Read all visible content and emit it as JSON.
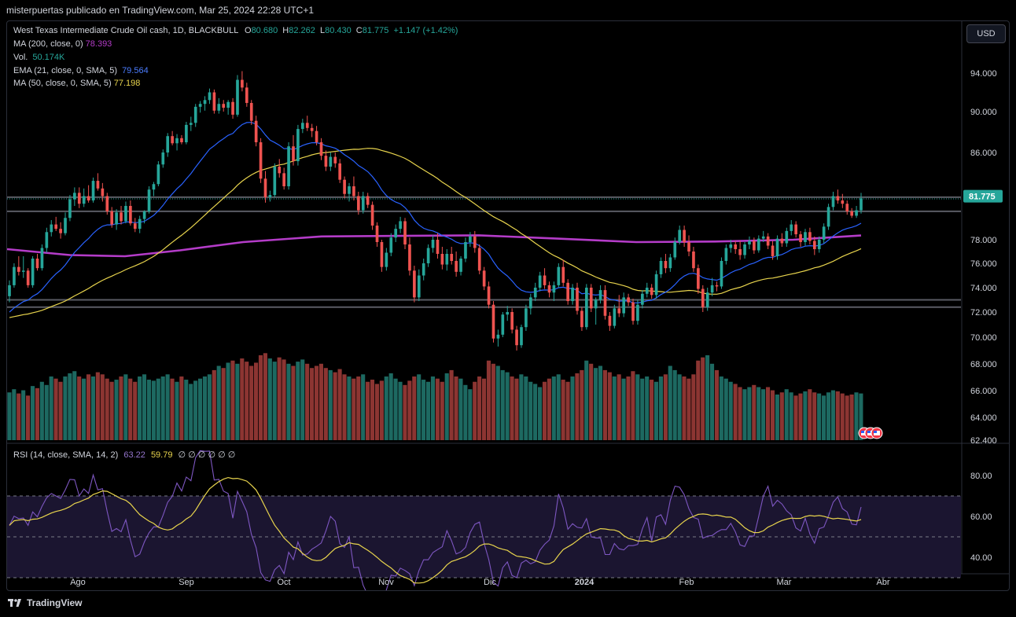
{
  "header": {
    "publisher": "misterpuertas publicado en TradingView.com, Mar 25, 2024 22:28 UTC+1"
  },
  "currency_button": "USD",
  "legend": {
    "symbol": "West Texas Intermediate Crude Oil cash, 1D, BLACKBULL",
    "o_label": "O",
    "o_value": "80.680",
    "h_label": "H",
    "h_value": "82.262",
    "l_label": "L",
    "l_value": "80.430",
    "c_label": "C",
    "c_value": "81.775",
    "change": "+1.147 (+1.42%)",
    "ma200_label": "MA (200, close, 0)",
    "ma200_value": "78.393",
    "vol_label": "Vol.",
    "vol_value": "50.174K",
    "ema21_label": "EMA (21, close, 0, SMA, 5)",
    "ema21_value": "79.564",
    "ma50_label": "MA (50, close, 0, SMA, 5)",
    "ma50_value": "77.198",
    "rsi_label": "RSI (14, close, SMA, 14, 2)",
    "rsi_value": "63.22",
    "rsi_ma_value": "59.79",
    "rsi_extra": "∅ ∅ ∅ ∅ ∅ ∅"
  },
  "footer": {
    "brand": "TradingView",
    "logo_icon": "tradingview-logo-icon"
  },
  "colors": {
    "up": "#26a69a",
    "down": "#ef5350",
    "ema": "#2962ff",
    "ma50": "#e8d44d",
    "ma200": "#b43cc8",
    "rsi": "#7e57c2",
    "rsi_ma": "#e8d44d",
    "last_price_bg": "#26a69a"
  },
  "chart_data": {
    "type": "candlestick",
    "price_axis_ticks": [
      "94.000",
      "90.000",
      "86.000",
      "78.000",
      "76.000",
      "74.000",
      "72.000",
      "70.000",
      "68.000",
      "66.000",
      "64.000",
      "62.400"
    ],
    "time_axis_ticks": [
      "Ago",
      "Sep",
      "Oct",
      "Nov",
      "Dic",
      "2024",
      "Feb",
      "Mar",
      "Abr"
    ],
    "last_price": "81.775",
    "horizontal_levels": [
      81.9,
      80.6,
      73.0,
      72.4
    ],
    "candles": [
      [
        73.3,
        74.6,
        72.8,
        74.2
      ],
      [
        74.2,
        76.0,
        74.0,
        75.7
      ],
      [
        75.7,
        76.6,
        75.0,
        75.3
      ],
      [
        75.3,
        76.6,
        74.8,
        75.4
      ],
      [
        75.4,
        75.6,
        74.0,
        74.2
      ],
      [
        74.2,
        76.6,
        74.0,
        76.4
      ],
      [
        76.4,
        76.8,
        75.4,
        75.6
      ],
      [
        75.6,
        77.6,
        75.4,
        77.3
      ],
      [
        77.3,
        79.1,
        76.9,
        78.7
      ],
      [
        78.7,
        79.8,
        78.3,
        79.4
      ],
      [
        79.4,
        80.1,
        78.8,
        79.0
      ],
      [
        79.0,
        79.6,
        78.1,
        78.6
      ],
      [
        78.6,
        80.5,
        78.4,
        80.0
      ],
      [
        80.0,
        82.1,
        79.7,
        81.7
      ],
      [
        81.7,
        82.8,
        81.1,
        82.3
      ],
      [
        82.3,
        82.8,
        80.9,
        81.3
      ],
      [
        81.3,
        82.7,
        81.0,
        82.0
      ],
      [
        82.0,
        83.0,
        81.4,
        81.6
      ],
      [
        81.6,
        83.7,
        81.4,
        83.4
      ],
      [
        83.4,
        84.1,
        82.5,
        82.7
      ],
      [
        82.7,
        83.2,
        81.5,
        82.0
      ],
      [
        82.0,
        82.3,
        80.3,
        80.6
      ],
      [
        80.6,
        81.0,
        79.1,
        79.4
      ],
      [
        79.4,
        80.8,
        78.9,
        80.5
      ],
      [
        80.5,
        81.1,
        79.4,
        79.7
      ],
      [
        79.7,
        81.5,
        79.5,
        81.1
      ],
      [
        81.1,
        81.6,
        79.3,
        79.5
      ],
      [
        79.5,
        80.0,
        78.7,
        79.0
      ],
      [
        79.0,
        80.2,
        78.6,
        79.9
      ],
      [
        79.9,
        80.7,
        79.5,
        80.6
      ],
      [
        80.6,
        82.9,
        80.4,
        82.6
      ],
      [
        82.6,
        83.3,
        82.0,
        83.1
      ],
      [
        83.1,
        85.2,
        82.9,
        84.9
      ],
      [
        84.9,
        86.3,
        84.6,
        86.0
      ],
      [
        86.0,
        87.9,
        85.6,
        87.6
      ],
      [
        87.6,
        88.1,
        86.7,
        86.9
      ],
      [
        86.9,
        87.8,
        86.2,
        87.4
      ],
      [
        87.4,
        87.7,
        86.8,
        87.0
      ],
      [
        87.0,
        89.0,
        86.8,
        88.7
      ],
      [
        88.7,
        89.5,
        88.1,
        88.9
      ],
      [
        88.9,
        90.8,
        88.5,
        90.5
      ],
      [
        90.5,
        91.1,
        89.9,
        90.8
      ],
      [
        90.8,
        91.6,
        90.1,
        91.2
      ],
      [
        91.2,
        92.4,
        90.8,
        92.0
      ],
      [
        92.0,
        92.3,
        89.8,
        90.1
      ],
      [
        90.1,
        91.4,
        89.8,
        90.8
      ],
      [
        90.8,
        91.2,
        90.0,
        90.4
      ],
      [
        90.4,
        91.2,
        89.7,
        91.0
      ],
      [
        91.0,
        91.4,
        89.3,
        89.7
      ],
      [
        89.7,
        93.8,
        89.5,
        93.3
      ],
      [
        93.3,
        94.2,
        92.1,
        92.5
      ],
      [
        92.5,
        93.0,
        90.5,
        90.9
      ],
      [
        90.9,
        91.2,
        88.7,
        89.1
      ],
      [
        89.1,
        89.6,
        86.6,
        87.0
      ],
      [
        87.0,
        87.4,
        83.2,
        83.6
      ],
      [
        83.6,
        84.3,
        81.4,
        81.9
      ],
      [
        81.9,
        82.5,
        81.5,
        82.1
      ],
      [
        82.1,
        85.0,
        81.9,
        84.7
      ],
      [
        84.7,
        85.4,
        83.7,
        84.1
      ],
      [
        84.1,
        84.6,
        82.6,
        82.9
      ],
      [
        82.9,
        87.0,
        82.6,
        86.6
      ],
      [
        86.6,
        87.7,
        84.8,
        85.2
      ],
      [
        85.2,
        88.7,
        84.8,
        88.3
      ],
      [
        88.3,
        89.3,
        87.9,
        88.9
      ],
      [
        88.9,
        89.6,
        88.1,
        88.4
      ],
      [
        88.4,
        88.8,
        87.5,
        88.1
      ],
      [
        88.1,
        88.6,
        86.7,
        87.0
      ],
      [
        87.0,
        87.4,
        85.3,
        85.7
      ],
      [
        85.7,
        86.2,
        84.3,
        84.7
      ],
      [
        84.7,
        86.0,
        84.3,
        85.6
      ],
      [
        85.6,
        86.0,
        84.6,
        85.0
      ],
      [
        85.0,
        85.4,
        83.2,
        83.5
      ],
      [
        83.5,
        83.8,
        81.8,
        82.2
      ],
      [
        82.2,
        83.2,
        81.5,
        82.9
      ],
      [
        82.9,
        83.8,
        81.6,
        82.0
      ],
      [
        82.0,
        82.4,
        80.3,
        80.7
      ],
      [
        80.7,
        82.4,
        80.4,
        82.0
      ],
      [
        82.0,
        82.3,
        80.9,
        81.2
      ],
      [
        81.2,
        81.5,
        78.9,
        79.3
      ],
      [
        79.3,
        79.6,
        77.4,
        77.8
      ],
      [
        77.8,
        78.0,
        75.3,
        75.7
      ],
      [
        75.7,
        77.3,
        75.4,
        76.9
      ],
      [
        76.9,
        78.6,
        76.6,
        78.2
      ],
      [
        78.2,
        79.4,
        77.8,
        79.0
      ],
      [
        79.0,
        80.1,
        78.6,
        79.7
      ],
      [
        79.7,
        80.0,
        77.2,
        77.6
      ],
      [
        77.6,
        78.2,
        75.0,
        75.4
      ],
      [
        75.4,
        75.8,
        72.8,
        73.2
      ],
      [
        73.2,
        75.5,
        72.9,
        75.0
      ],
      [
        75.0,
        76.4,
        74.6,
        76.0
      ],
      [
        76.0,
        77.6,
        75.7,
        77.3
      ],
      [
        77.3,
        78.4,
        76.9,
        78.0
      ],
      [
        78.0,
        78.6,
        76.4,
        76.8
      ],
      [
        76.8,
        77.4,
        75.5,
        75.9
      ],
      [
        75.9,
        77.2,
        75.4,
        76.8
      ],
      [
        76.8,
        77.4,
        75.9,
        76.2
      ],
      [
        76.2,
        77.0,
        74.9,
        75.3
      ],
      [
        75.3,
        76.6,
        75.0,
        76.4
      ],
      [
        76.4,
        78.2,
        76.1,
        77.8
      ],
      [
        77.8,
        78.7,
        77.4,
        78.3
      ],
      [
        78.3,
        78.8,
        76.9,
        77.3
      ],
      [
        77.3,
        77.6,
        75.1,
        75.4
      ],
      [
        75.4,
        75.7,
        73.8,
        74.1
      ],
      [
        74.1,
        74.5,
        72.3,
        72.6
      ],
      [
        72.6,
        72.9,
        69.6,
        69.9
      ],
      [
        69.9,
        70.6,
        69.3,
        70.2
      ],
      [
        70.2,
        72.0,
        70.0,
        71.8
      ],
      [
        71.8,
        72.5,
        71.3,
        72.0
      ],
      [
        72.0,
        72.3,
        70.3,
        70.6
      ],
      [
        70.6,
        70.9,
        69.0,
        69.4
      ],
      [
        69.4,
        71.0,
        69.2,
        70.8
      ],
      [
        70.8,
        72.6,
        70.5,
        72.3
      ],
      [
        72.3,
        73.5,
        71.8,
        73.2
      ],
      [
        73.2,
        74.4,
        72.9,
        74.0
      ],
      [
        74.0,
        75.3,
        73.7,
        75.0
      ],
      [
        75.0,
        75.6,
        73.9,
        74.2
      ],
      [
        74.2,
        74.5,
        73.2,
        73.6
      ],
      [
        73.6,
        74.5,
        72.9,
        74.2
      ],
      [
        74.2,
        76.0,
        74.0,
        75.7
      ],
      [
        75.7,
        76.3,
        74.1,
        74.4
      ],
      [
        74.4,
        74.7,
        72.6,
        72.9
      ],
      [
        72.9,
        74.3,
        72.6,
        74.0
      ],
      [
        74.0,
        74.4,
        71.8,
        72.1
      ],
      [
        72.1,
        72.4,
        70.5,
        70.8
      ],
      [
        70.8,
        74.3,
        70.6,
        74.0
      ],
      [
        74.0,
        74.3,
        72.0,
        72.3
      ],
      [
        72.3,
        73.2,
        71.0,
        73.0
      ],
      [
        73.0,
        74.2,
        72.7,
        73.8
      ],
      [
        73.8,
        74.2,
        71.4,
        71.7
      ],
      [
        71.7,
        72.0,
        70.5,
        70.9
      ],
      [
        70.9,
        72.6,
        70.7,
        72.3
      ],
      [
        72.3,
        73.4,
        71.6,
        71.9
      ],
      [
        71.9,
        73.6,
        71.6,
        73.2
      ],
      [
        73.2,
        73.5,
        72.5,
        72.8
      ],
      [
        72.8,
        73.1,
        71.0,
        71.3
      ],
      [
        71.3,
        73.0,
        71.0,
        72.6
      ],
      [
        72.6,
        73.8,
        72.3,
        73.5
      ],
      [
        73.5,
        74.4,
        73.2,
        74.0
      ],
      [
        74.0,
        74.3,
        73.1,
        73.4
      ],
      [
        73.4,
        75.4,
        73.1,
        75.1
      ],
      [
        75.1,
        76.5,
        74.8,
        76.2
      ],
      [
        76.2,
        76.8,
        75.2,
        75.6
      ],
      [
        75.6,
        76.8,
        75.3,
        76.5
      ],
      [
        76.5,
        78.2,
        76.3,
        77.8
      ],
      [
        77.8,
        79.3,
        77.6,
        78.9
      ],
      [
        78.9,
        79.3,
        77.4,
        77.8
      ],
      [
        77.8,
        78.4,
        76.6,
        77.0
      ],
      [
        77.0,
        77.4,
        75.3,
        75.6
      ],
      [
        75.6,
        75.9,
        73.5,
        73.9
      ],
      [
        73.9,
        74.2,
        72.0,
        72.4
      ],
      [
        72.4,
        74.0,
        72.1,
        73.6
      ],
      [
        73.6,
        74.8,
        73.3,
        74.2
      ],
      [
        74.2,
        74.5,
        73.7,
        74.1
      ],
      [
        74.1,
        76.5,
        73.9,
        76.2
      ],
      [
        76.2,
        77.6,
        75.9,
        77.3
      ],
      [
        77.3,
        78.0,
        76.9,
        77.6
      ],
      [
        77.6,
        77.9,
        76.8,
        77.2
      ],
      [
        77.2,
        77.9,
        76.3,
        76.7
      ],
      [
        76.7,
        77.8,
        76.4,
        77.6
      ],
      [
        77.6,
        78.3,
        77.2,
        77.9
      ],
      [
        77.9,
        78.2,
        76.8,
        77.1
      ],
      [
        77.1,
        78.4,
        76.9,
        78.1
      ],
      [
        78.1,
        78.8,
        77.8,
        78.3
      ],
      [
        78.3,
        78.6,
        77.2,
        77.5
      ],
      [
        77.5,
        77.9,
        76.3,
        76.6
      ],
      [
        76.6,
        78.4,
        76.3,
        78.1
      ],
      [
        78.1,
        78.6,
        77.4,
        77.7
      ],
      [
        77.7,
        79.1,
        77.4,
        78.8
      ],
      [
        78.8,
        79.8,
        78.4,
        79.4
      ],
      [
        79.4,
        79.7,
        78.2,
        78.5
      ],
      [
        78.5,
        78.8,
        77.4,
        77.8
      ],
      [
        77.8,
        79.0,
        77.5,
        78.7
      ],
      [
        78.7,
        79.1,
        77.6,
        77.9
      ],
      [
        77.9,
        78.3,
        76.7,
        77.2
      ],
      [
        77.2,
        78.3,
        76.9,
        78.0
      ],
      [
        78.0,
        79.5,
        77.7,
        79.2
      ],
      [
        79.2,
        81.3,
        78.9,
        81.0
      ],
      [
        81.0,
        82.4,
        80.7,
        82.0
      ],
      [
        82.0,
        82.6,
        81.3,
        81.6
      ],
      [
        81.6,
        82.2,
        80.9,
        81.3
      ],
      [
        81.3,
        81.6,
        80.3,
        80.6
      ],
      [
        80.6,
        80.9,
        80.0,
        80.2
      ],
      [
        80.2,
        81.1,
        80.0,
        80.7
      ],
      [
        80.7,
        82.3,
        80.4,
        81.8
      ]
    ],
    "volume_series_scaled": [
      0.45,
      0.48,
      0.44,
      0.47,
      0.42,
      0.51,
      0.49,
      0.55,
      0.52,
      0.6,
      0.58,
      0.55,
      0.6,
      0.63,
      0.65,
      0.6,
      0.58,
      0.62,
      0.6,
      0.64,
      0.62,
      0.58,
      0.55,
      0.57,
      0.6,
      0.62,
      0.58,
      0.55,
      0.6,
      0.62,
      0.57,
      0.56,
      0.58,
      0.6,
      0.62,
      0.58,
      0.55,
      0.6,
      0.57,
      0.53,
      0.56,
      0.58,
      0.6,
      0.62,
      0.66,
      0.7,
      0.68,
      0.73,
      0.75,
      0.72,
      0.77,
      0.74,
      0.7,
      0.73,
      0.8,
      0.82,
      0.77,
      0.74,
      0.78,
      0.76,
      0.72,
      0.7,
      0.74,
      0.76,
      0.72,
      0.68,
      0.7,
      0.72,
      0.68,
      0.66,
      0.64,
      0.67,
      0.62,
      0.6,
      0.58,
      0.6,
      0.62,
      0.55,
      0.57,
      0.53,
      0.56,
      0.6,
      0.63,
      0.58,
      0.55,
      0.52,
      0.56,
      0.6,
      0.62,
      0.57,
      0.55,
      0.6,
      0.58,
      0.55,
      0.63,
      0.66,
      0.6,
      0.58,
      0.52,
      0.48,
      0.55,
      0.6,
      0.58,
      0.75,
      0.72,
      0.7,
      0.66,
      0.64,
      0.6,
      0.58,
      0.62,
      0.6,
      0.55,
      0.53,
      0.5,
      0.55,
      0.58,
      0.6,
      0.62,
      0.57,
      0.55,
      0.6,
      0.63,
      0.66,
      0.75,
      0.72,
      0.68,
      0.7,
      0.66,
      0.64,
      0.6,
      0.62,
      0.58,
      0.6,
      0.65,
      0.62,
      0.58,
      0.6,
      0.57,
      0.55,
      0.6,
      0.62,
      0.7,
      0.66,
      0.62,
      0.6,
      0.58,
      0.62,
      0.75,
      0.78,
      0.8,
      0.72,
      0.66,
      0.6,
      0.58,
      0.55,
      0.53,
      0.5,
      0.48,
      0.5,
      0.52,
      0.5,
      0.48,
      0.5,
      0.47,
      0.43,
      0.45,
      0.48,
      0.45,
      0.42,
      0.44,
      0.46,
      0.48,
      0.45,
      0.44,
      0.42,
      0.45,
      0.47,
      0.46,
      0.44,
      0.42,
      0.43,
      0.45,
      0.44,
      0.42,
      0.4,
      0.43,
      0.45,
      0.44
    ],
    "rsi_axis_ticks": [
      "80.00",
      "60.00",
      "40.00"
    ],
    "rsi_bands": [
      70,
      50,
      30
    ]
  }
}
